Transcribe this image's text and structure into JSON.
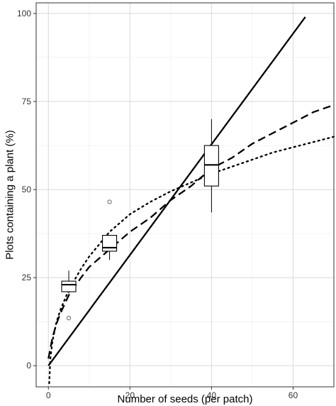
{
  "chart_data": {
    "type": "line",
    "title": "",
    "xlabel": "Number of seeds (per patch)",
    "ylabel": "Plots containing a plant (%)",
    "xlim": [
      -3,
      70
    ],
    "ylim": [
      -6,
      103
    ],
    "x_ticks": [
      0,
      20,
      40,
      60
    ],
    "y_ticks": [
      0,
      25,
      50,
      75,
      100
    ],
    "x_tick_labels": [
      "0",
      "20",
      "40",
      "60"
    ],
    "y_tick_labels": [
      "0",
      "25",
      "50",
      "75",
      "100"
    ],
    "grid": true,
    "legend": "none",
    "series": [
      {
        "style": "solid",
        "x": [
          0,
          63
        ],
        "y": [
          0,
          99
        ]
      },
      {
        "style": "dashed",
        "x": [
          0,
          1,
          2,
          3,
          5,
          8,
          10,
          15,
          20,
          25,
          30,
          35,
          40,
          45,
          50,
          55,
          60,
          65,
          70
        ],
        "y": [
          2,
          8,
          12,
          15,
          20,
          25,
          28,
          33,
          38,
          42,
          47,
          51,
          56,
          59,
          63,
          66,
          69,
          72,
          74
        ]
      },
      {
        "style": "dotted",
        "x": [
          0.2,
          0.5,
          1,
          2,
          3,
          5,
          8,
          10,
          15,
          20,
          25,
          30,
          35,
          40,
          45,
          50,
          55,
          60,
          65,
          70
        ],
        "y": [
          -5,
          2,
          7,
          12.5,
          16,
          21.5,
          27.5,
          31,
          38,
          43,
          46.5,
          49.5,
          52,
          54.5,
          56.5,
          58.5,
          60.5,
          62,
          63.5,
          65
        ]
      }
    ],
    "boxplots": [
      {
        "x": 5,
        "whisker_low": 20.5,
        "q1": 21,
        "median": 23,
        "q3": 24,
        "whisker_high": 27,
        "outliers": [
          13.5
        ]
      },
      {
        "x": 15,
        "whisker_low": 30,
        "q1": 32.5,
        "median": 33.5,
        "q3": 37,
        "whisker_high": 37,
        "outliers": [
          46.5
        ]
      },
      {
        "x": 40,
        "whisker_low": 43.5,
        "q1": 51,
        "median": 57,
        "q3": 62.5,
        "whisker_high": 70,
        "outliers": []
      }
    ]
  }
}
